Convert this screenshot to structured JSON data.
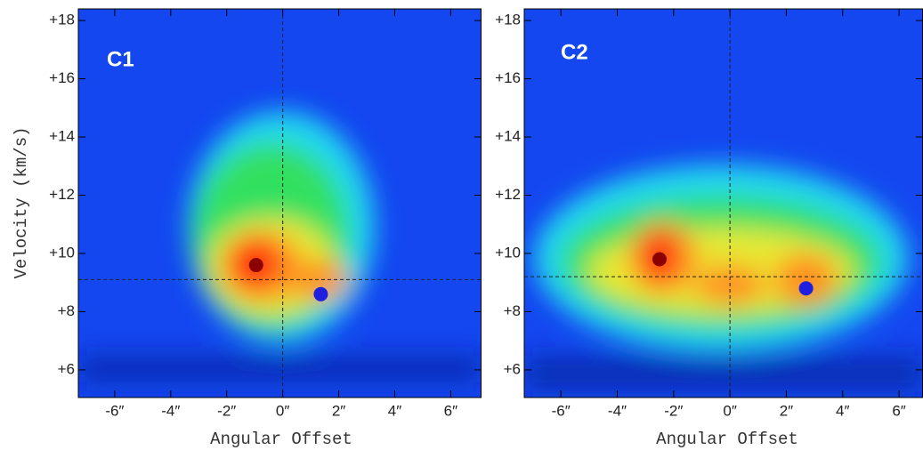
{
  "chart_data": [
    {
      "type": "pv-diagram",
      "title": "C1",
      "ylabel": "Velocity (km/s)",
      "xlabel": "Angular Offset",
      "xlim": [
        -7.3,
        7.1
      ],
      "ylim": [
        5.05,
        18.4
      ],
      "xticks": [
        {
          "value": -6,
          "label": "-6″"
        },
        {
          "value": -4,
          "label": "-4″"
        },
        {
          "value": -2,
          "label": "-2″"
        },
        {
          "value": 0,
          "label": "0″"
        },
        {
          "value": 2,
          "label": "2″"
        },
        {
          "value": 4,
          "label": "4″"
        },
        {
          "value": 6,
          "label": "6″"
        }
      ],
      "yticks": [
        {
          "value": 6,
          "label": "+6"
        },
        {
          "value": 8,
          "label": "+8"
        },
        {
          "value": 10,
          "label": "+10"
        },
        {
          "value": 12,
          "label": "+12"
        },
        {
          "value": 14,
          "label": "+14"
        },
        {
          "value": 16,
          "label": "+16"
        },
        {
          "value": 18,
          "label": "+18"
        }
      ],
      "vlines": [
        0
      ],
      "hlines": [
        9.1
      ],
      "series": [
        {
          "color": "#8b0000",
          "x": [
            -0.95
          ],
          "values": [
            9.6
          ]
        },
        {
          "color": "#1f1fe0",
          "x": [
            1.36
          ],
          "values": [
            8.6
          ]
        }
      ]
    },
    {
      "type": "pv-diagram",
      "title": "C2",
      "xlabel": "Angular Offset",
      "xlim": [
        -7.3,
        6.85
      ],
      "ylim": [
        5.05,
        18.4
      ],
      "xticks": [
        {
          "value": -6,
          "label": "-6″"
        },
        {
          "value": -4,
          "label": "-4″"
        },
        {
          "value": -2,
          "label": "-2″"
        },
        {
          "value": 0,
          "label": "0″"
        },
        {
          "value": 2,
          "label": "2″"
        },
        {
          "value": 4,
          "label": "4″"
        },
        {
          "value": 6,
          "label": "6″"
        }
      ],
      "yticks": [
        {
          "value": 6,
          "label": "+6"
        },
        {
          "value": 8,
          "label": "+8"
        },
        {
          "value": 10,
          "label": "+10"
        },
        {
          "value": 12,
          "label": "+12"
        },
        {
          "value": 14,
          "label": "+14"
        },
        {
          "value": 16,
          "label": "+16"
        },
        {
          "value": 18,
          "label": "+18"
        }
      ],
      "vlines": [
        0
      ],
      "hlines": [
        9.2
      ],
      "series": [
        {
          "color": "#8b0000",
          "x": [
            -2.5
          ],
          "values": [
            9.8
          ]
        },
        {
          "color": "#1f1fe0",
          "x": [
            2.7
          ],
          "values": [
            8.8
          ]
        }
      ]
    }
  ]
}
